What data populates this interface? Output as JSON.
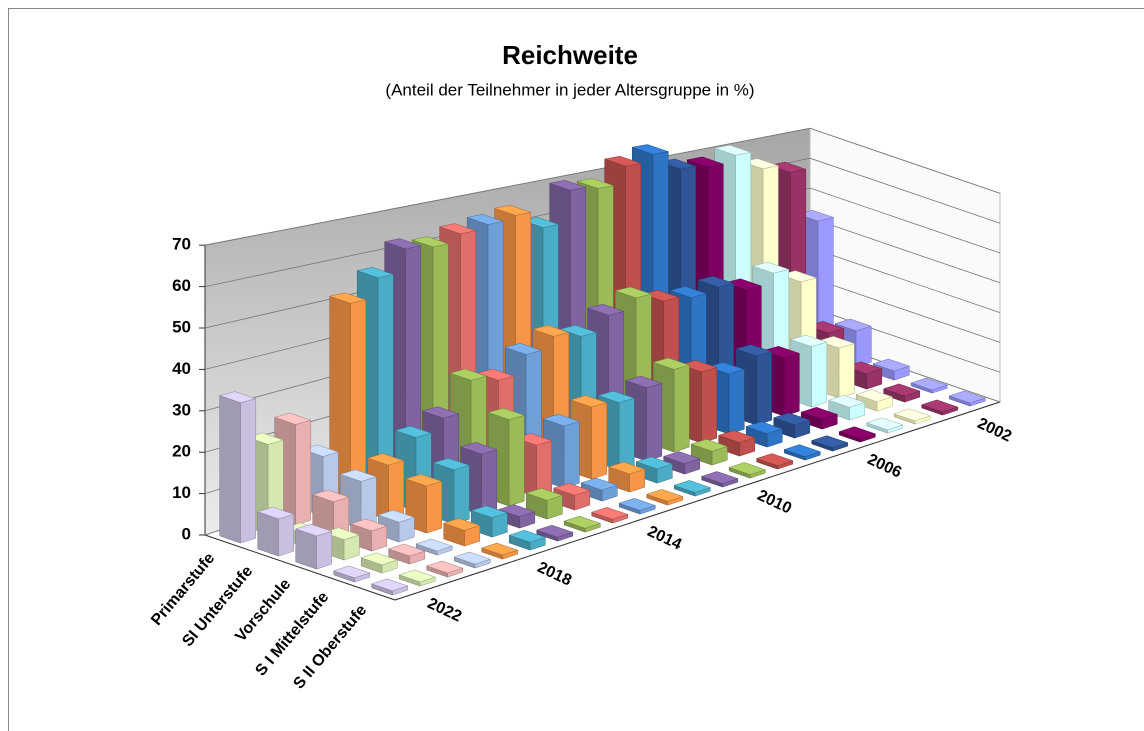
{
  "chart_data": {
    "type": "bar3d",
    "title": "Reichweite",
    "subtitle": "(Anteil der Teilnehmer in jeder Altersgruppe in %)",
    "categories": [
      null,
      "2022",
      null,
      null,
      null,
      "2018",
      null,
      null,
      null,
      "2014",
      null,
      null,
      null,
      "2010",
      null,
      null,
      null,
      "2006",
      null,
      null,
      null,
      "2002"
    ],
    "colors": [
      "#c9c0e0",
      "#d4e8b0",
      "#e8b0b0",
      "#b8c8e8",
      "#f79646",
      "#4bacc6",
      "#8064a2",
      "#9bbb59",
      "#e06e6a",
      "#6f9fd8",
      "#f79646",
      "#4bacc6",
      "#8064a2",
      "#9bbb59",
      "#c0504d",
      "#2e75c6",
      "#2f5597",
      "#7f0061",
      "#ccffff",
      "#ffffcc",
      "#993366",
      "#9999ff"
    ],
    "series": [
      {
        "name": "Primarstufe",
        "values": [
          34,
          22,
          25,
          15,
          52,
          57,
          63,
          62,
          64,
          65,
          66,
          61,
          70,
          69,
          74,
          76,
          70,
          69,
          71,
          65,
          62,
          44
        ]
      },
      {
        "name": "SI Unterstufe",
        "values": [
          9,
          3,
          9,
          12,
          14,
          19,
          22,
          30,
          28,
          33,
          36,
          34,
          38,
          41,
          38,
          37,
          38,
          35,
          38,
          33,
          14,
          12
        ]
      },
      {
        "name": "Vorschule",
        "values": [
          8,
          5,
          5,
          5,
          12,
          14,
          16,
          23,
          14,
          17,
          20,
          19,
          21,
          24,
          21,
          18,
          21,
          18,
          19,
          16,
          5,
          3
        ]
      },
      {
        "name": "S I Mittelstufe",
        "values": [
          1,
          2,
          2,
          1,
          4,
          5,
          3,
          5,
          4,
          3,
          5,
          4,
          3,
          4,
          4,
          4,
          4,
          3,
          4,
          3,
          2,
          1
        ]
      },
      {
        "name": "S II Oberstufe",
        "values": [
          1,
          1,
          1,
          1,
          1,
          2,
          1,
          1,
          1,
          1,
          1,
          1,
          1,
          1,
          1,
          1,
          1,
          1,
          1,
          1,
          1,
          1
        ]
      }
    ],
    "ylim": [
      0,
      70
    ],
    "yticks": [
      0,
      10,
      20,
      30,
      40,
      50,
      60,
      70
    ],
    "grid": true
  }
}
